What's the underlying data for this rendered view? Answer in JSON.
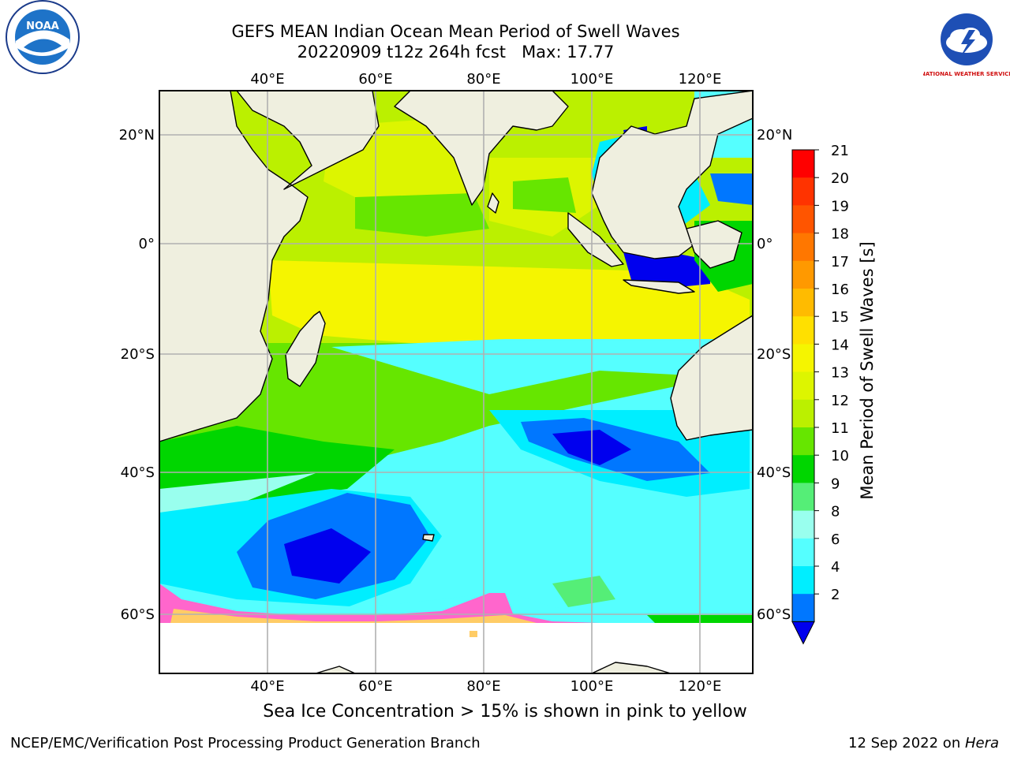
{
  "header": {
    "title": "GEFS MEAN Indian Ocean Mean Period of Swell Waves",
    "subtitle_date": "20220909 t12z 264h fcst",
    "subtitle_max": "Max: 17.77"
  },
  "map": {
    "top_lon_labels": [
      "40°E",
      "60°E",
      "80°E",
      "100°E",
      "120°E"
    ],
    "bottom_lon_labels": [
      "40°E",
      "60°E",
      "80°E",
      "100°E",
      "120°E"
    ],
    "left_lat_labels": [
      "20°N",
      "0°",
      "20°S",
      "40°S",
      "60°S"
    ],
    "right_lat_labels": [
      "20°N",
      "0°",
      "20°S",
      "40°S",
      "60°S"
    ],
    "land_color": "#efefdf",
    "graticule_color": "#b0b0b0"
  },
  "colorbar": {
    "label": "Mean Period of Swell Waves [s]",
    "ticks": [
      "21",
      "20",
      "19",
      "18",
      "17",
      "16",
      "15",
      "14",
      "13",
      "12",
      "11",
      "10",
      "9",
      "8",
      "6",
      "4",
      "2"
    ],
    "colors_top_to_bottom": [
      "#ff0000",
      "#ff3300",
      "#ff5500",
      "#ff7700",
      "#ff9900",
      "#ffbb00",
      "#ffe000",
      "#f5f500",
      "#ddf500",
      "#bbf000",
      "#66e600",
      "#00d600",
      "#55ee77",
      "#99ffee",
      "#55ffff",
      "#00eeff",
      "#0077ff"
    ],
    "under_color": "#0000ee"
  },
  "footer": {
    "sea_ice_note": "Sea Ice Concentration > 15% is shown in pink to yellow",
    "credit_left": "NCEP/EMC/Verification Post Processing Product Generation Branch",
    "credit_date": "12 Sep 2022 on ",
    "credit_machine": "Hera"
  },
  "logos": {
    "noaa_text": "NOAA",
    "nws_text": "NATIONAL WEATHER SERVICE"
  }
}
